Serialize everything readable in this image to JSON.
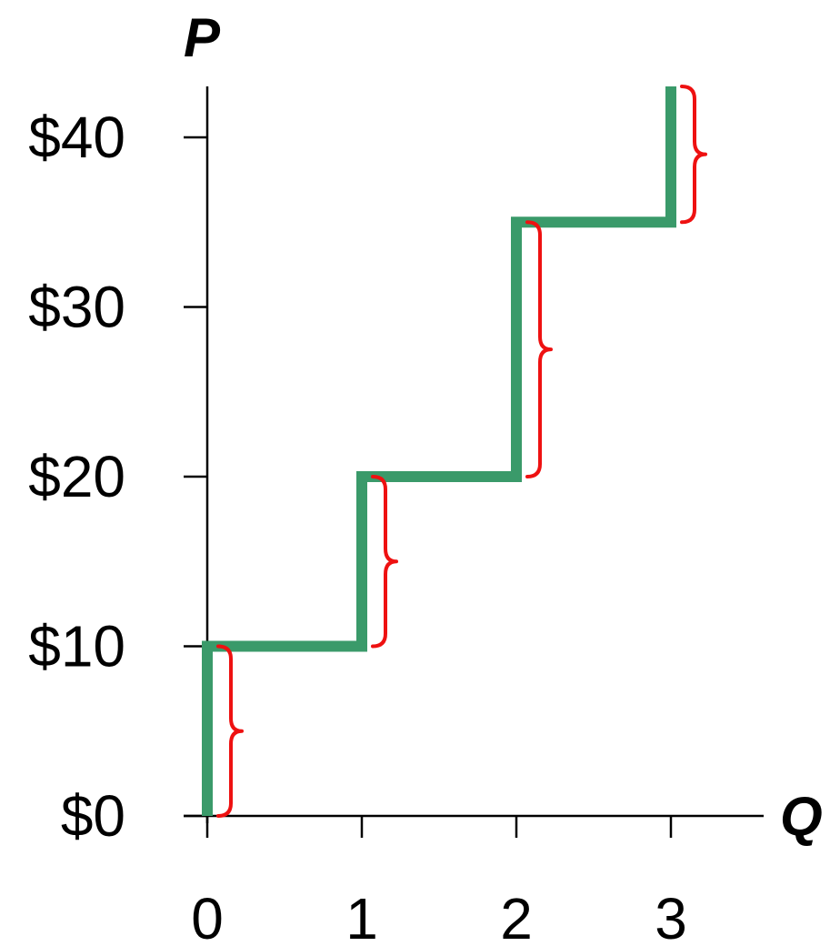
{
  "chart_data": {
    "type": "line",
    "title": "",
    "xlabel": "Q",
    "ylabel": "P",
    "x_ticks": [
      "0",
      "1",
      "2",
      "3"
    ],
    "y_ticks": [
      "$0",
      "$10",
      "$20",
      "$30",
      "$40"
    ],
    "xlim": [
      0,
      3.6
    ],
    "ylim": [
      0,
      43
    ],
    "grid": false,
    "series": [
      {
        "style": "step",
        "color": "#3a9a6a",
        "points": [
          {
            "x": 0,
            "y": 0
          },
          {
            "x": 0,
            "y": 10
          },
          {
            "x": 1,
            "y": 10
          },
          {
            "x": 1,
            "y": 20
          },
          {
            "x": 2,
            "y": 20
          },
          {
            "x": 2,
            "y": 35
          },
          {
            "x": 3,
            "y": 35
          },
          {
            "x": 3,
            "y": 43
          }
        ]
      }
    ],
    "annotations": [
      {
        "type": "brace",
        "color": "#ee1111",
        "x": 0,
        "y_from": 0,
        "y_to": 10
      },
      {
        "type": "brace",
        "color": "#ee1111",
        "x": 1,
        "y_from": 10,
        "y_to": 20
      },
      {
        "type": "brace",
        "color": "#ee1111",
        "x": 2,
        "y_from": 20,
        "y_to": 35
      },
      {
        "type": "brace",
        "color": "#ee1111",
        "x": 3,
        "y_from": 35,
        "y_to": 43
      }
    ]
  }
}
